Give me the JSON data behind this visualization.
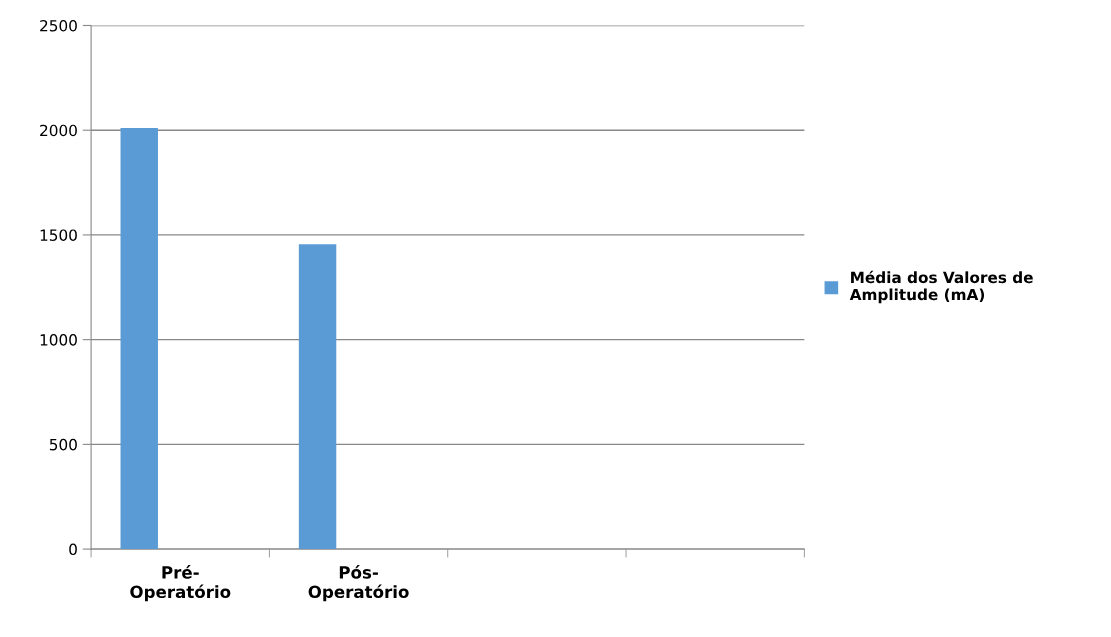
{
  "chart_data": {
    "type": "bar",
    "categories": [
      "Pré-\nOperatório",
      "Pós-\nOperatório",
      null,
      null
    ],
    "series": [
      {
        "name": "Média dos Valores de\nAmplitude (mA)",
        "color": "#5b9bd5",
        "values": [
          2010,
          1455,
          null,
          null
        ]
      }
    ],
    "ylim": [
      0,
      2500
    ],
    "yticks": [
      0,
      500,
      1000,
      1500,
      2000,
      2500
    ],
    "grid": "y",
    "legend": "right"
  }
}
